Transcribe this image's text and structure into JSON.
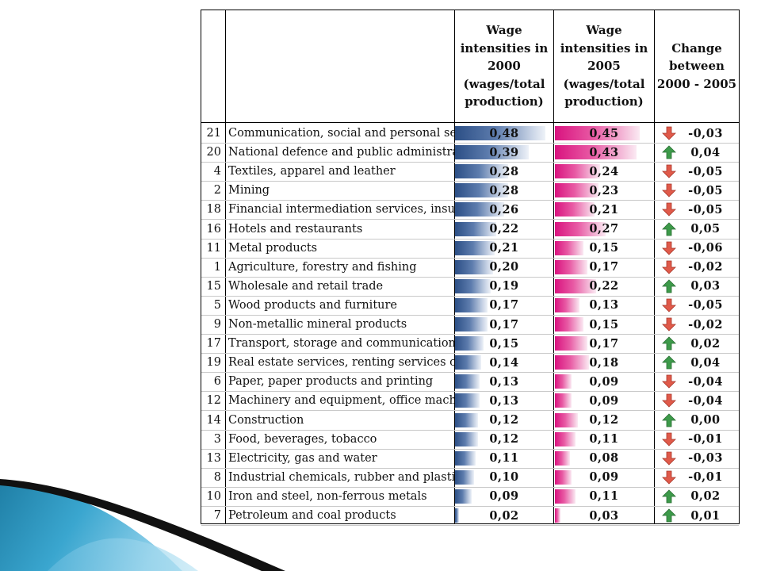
{
  "header": {
    "col_2000": "Wage\nintensities in\n2000\n(wages/total\nproduction)",
    "col_2005": "Wage\nintensities in\n2005\n(wages/total\nproduction)",
    "col_change": "Change\nbetween\n2000 - 2005"
  },
  "colors": {
    "bar_2000": "#2c4f86",
    "bar_2005": "#d9137f",
    "arrow_up": "#3d9a4a",
    "arrow_down": "#e05a4a"
  },
  "rows": [
    {
      "code": "21",
      "name": "Communication, social and personal services",
      "v2000": "0,48",
      "v2005": "0,45",
      "change": "-0,03",
      "dir": "down"
    },
    {
      "code": "20",
      "name": "National defence and public administration",
      "v2000": "0,39",
      "v2005": "0,43",
      "change": "0,04",
      "dir": "up"
    },
    {
      "code": "4",
      "name": "Textiles, apparel and leather",
      "v2000": "0,28",
      "v2005": "0,24",
      "change": "-0,05",
      "dir": "down"
    },
    {
      "code": "2",
      "name": "Mining",
      "v2000": "0,28",
      "v2005": "0,23",
      "change": "-0,05",
      "dir": "down"
    },
    {
      "code": "18",
      "name": "Financial intermediation services, insurance",
      "v2000": "0,26",
      "v2005": "0,21",
      "change": "-0,05",
      "dir": "down"
    },
    {
      "code": "16",
      "name": "Hotels and restaurants",
      "v2000": "0,22",
      "v2005": "0,27",
      "change": "0,05",
      "dir": "up"
    },
    {
      "code": "11",
      "name": "Metal products",
      "v2000": "0,21",
      "v2005": "0,15",
      "change": "-0,06",
      "dir": "down"
    },
    {
      "code": "1",
      "name": "Agriculture, forestry and fishing",
      "v2000": "0,20",
      "v2005": "0,17",
      "change": "-0,02",
      "dir": "down"
    },
    {
      "code": "15",
      "name": "Wholesale and retail trade",
      "v2000": "0,19",
      "v2005": "0,22",
      "change": "0,03",
      "dir": "up"
    },
    {
      "code": "5",
      "name": "Wood products and furniture",
      "v2000": "0,17",
      "v2005": "0,13",
      "change": "-0,05",
      "dir": "down"
    },
    {
      "code": "9",
      "name": "Non-metallic mineral products",
      "v2000": "0,17",
      "v2005": "0,15",
      "change": "-0,02",
      "dir": "down"
    },
    {
      "code": "17",
      "name": "Transport, storage and communication",
      "v2000": "0,15",
      "v2005": "0,17",
      "change": "0,02",
      "dir": "up"
    },
    {
      "code": "19",
      "name": "Real estate services, renting services of",
      "v2000": "0,14",
      "v2005": "0,18",
      "change": "0,04",
      "dir": "up"
    },
    {
      "code": "6",
      "name": "Paper, paper products and printing",
      "v2000": "0,13",
      "v2005": "0,09",
      "change": "-0,04",
      "dir": "down"
    },
    {
      "code": "12",
      "name": "Machinery and equipment, office machinery",
      "v2000": "0,13",
      "v2005": "0,09",
      "change": "-0,04",
      "dir": "down"
    },
    {
      "code": "14",
      "name": "Construction",
      "v2000": "0,12",
      "v2005": "0,12",
      "change": "0,00",
      "dir": "up"
    },
    {
      "code": "3",
      "name": "Food, beverages, tobacco",
      "v2000": "0,12",
      "v2005": "0,11",
      "change": "-0,01",
      "dir": "down"
    },
    {
      "code": "13",
      "name": "Electricity, gas and water",
      "v2000": "0,11",
      "v2005": "0,08",
      "change": "-0,03",
      "dir": "down"
    },
    {
      "code": "8",
      "name": "Industrial chemicals, rubber and plastic products",
      "v2000": "0,10",
      "v2005": "0,09",
      "change": "-0,01",
      "dir": "down"
    },
    {
      "code": "10",
      "name": "Iron and steel, non-ferrous metals",
      "v2000": "0,09",
      "v2005": "0,11",
      "change": "0,02",
      "dir": "up"
    },
    {
      "code": "7",
      "name": "Petroleum and coal products",
      "v2000": "0,02",
      "v2005": "0,03",
      "change": "0,01",
      "dir": "up"
    }
  ]
}
